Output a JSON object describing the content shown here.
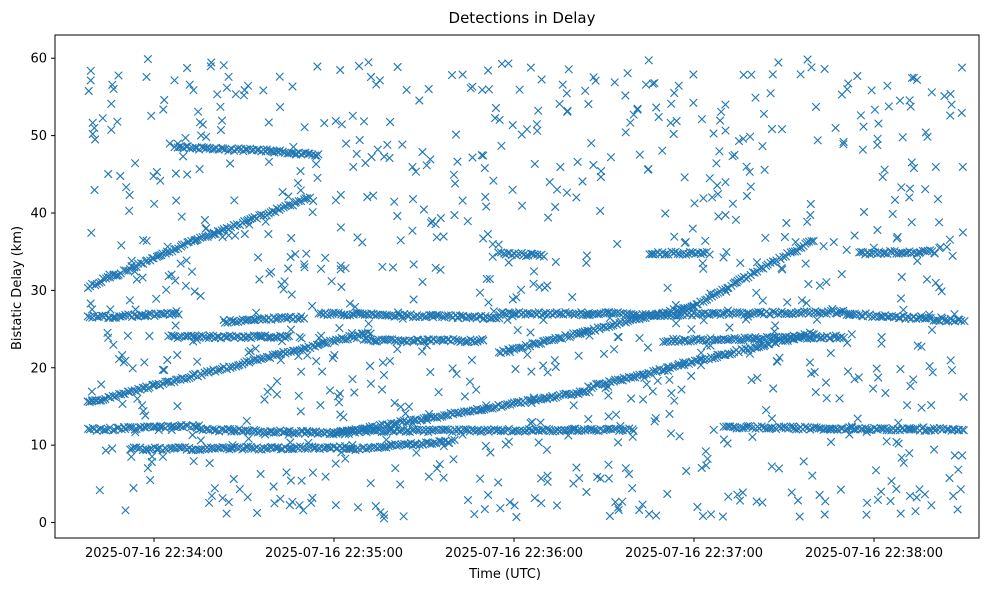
{
  "chart_data": {
    "type": "scatter",
    "title": "Detections in Delay",
    "xlabel": "Time (UTC)",
    "ylabel": "Bistatic Delay (km)",
    "marker": "x",
    "color": "#1f77b4",
    "x_type": "datetime",
    "xlim": [
      "2025-07-16 22:33:27",
      "2025-07-16 22:38:35"
    ],
    "ylim": [
      -2,
      63
    ],
    "xticks": [
      "2025-07-16 22:34:00",
      "2025-07-16 22:35:00",
      "2025-07-16 22:36:00",
      "2025-07-16 22:37:00",
      "2025-07-16 22:38:00"
    ],
    "yticks": [
      0,
      10,
      20,
      30,
      40,
      50,
      60
    ],
    "grid": false,
    "tracks": [
      {
        "start": "2025-07-16 22:33:38",
        "end": "2025-07-16 22:34:14",
        "y_start": 30.5,
        "y_end": 36.5
      },
      {
        "start": "2025-07-16 22:34:14",
        "end": "2025-07-16 22:34:52",
        "y_start": 36.5,
        "y_end": 42.0
      },
      {
        "start": "2025-07-16 22:34:07",
        "end": "2025-07-16 22:34:40",
        "y_start": 48.5,
        "y_end": 48.0
      },
      {
        "start": "2025-07-16 22:34:40",
        "end": "2025-07-16 22:34:55",
        "y_start": 48.0,
        "y_end": 47.5
      },
      {
        "start": "2025-07-16 22:33:38",
        "end": "2025-07-16 22:34:08",
        "y_start": 26.5,
        "y_end": 27.0
      },
      {
        "start": "2025-07-16 22:34:23",
        "end": "2025-07-16 22:34:50",
        "y_start": 26.0,
        "y_end": 26.5
      },
      {
        "start": "2025-07-16 22:34:55",
        "end": "2025-07-16 22:35:55",
        "y_start": 27.0,
        "y_end": 26.5
      },
      {
        "start": "2025-07-16 22:35:55",
        "end": "2025-07-16 22:36:40",
        "y_start": 27.0,
        "y_end": 27.0
      },
      {
        "start": "2025-07-16 22:36:40",
        "end": "2025-07-16 22:37:50",
        "y_start": 26.8,
        "y_end": 27.2
      },
      {
        "start": "2025-07-16 22:37:50",
        "end": "2025-07-16 22:38:30",
        "y_start": 27.0,
        "y_end": 26.0
      },
      {
        "start": "2025-07-16 22:33:38",
        "end": "2025-07-16 22:34:55",
        "y_start": 15.5,
        "y_end": 23.0
      },
      {
        "start": "2025-07-16 22:34:55",
        "end": "2025-07-16 22:35:12",
        "y_start": 23.0,
        "y_end": 24.5
      },
      {
        "start": "2025-07-16 22:35:00",
        "end": "2025-07-16 22:36:25",
        "y_start": 11.5,
        "y_end": 17.0
      },
      {
        "start": "2025-07-16 22:36:25",
        "end": "2025-07-16 22:37:40",
        "y_start": 17.5,
        "y_end": 24.5
      },
      {
        "start": "2025-07-16 22:35:55",
        "end": "2025-07-16 22:37:00",
        "y_start": 22.0,
        "y_end": 28.0
      },
      {
        "start": "2025-07-16 22:37:00",
        "end": "2025-07-16 22:37:40",
        "y_start": 28.0,
        "y_end": 36.5
      },
      {
        "start": "2025-07-16 22:33:38",
        "end": "2025-07-16 22:34:15",
        "y_start": 12.0,
        "y_end": 12.5
      },
      {
        "start": "2025-07-16 22:34:15",
        "end": "2025-07-16 22:35:05",
        "y_start": 12.0,
        "y_end": 11.5
      },
      {
        "start": "2025-07-16 22:35:05",
        "end": "2025-07-16 22:36:40",
        "y_start": 11.8,
        "y_end": 12.0
      },
      {
        "start": "2025-07-16 22:37:10",
        "end": "2025-07-16 22:38:30",
        "y_start": 12.3,
        "y_end": 12.0
      },
      {
        "start": "2025-07-16 22:33:52",
        "end": "2025-07-16 22:35:05",
        "y_start": 9.5,
        "y_end": 9.7
      },
      {
        "start": "2025-07-16 22:35:05",
        "end": "2025-07-16 22:35:40",
        "y_start": 9.5,
        "y_end": 10.5
      },
      {
        "start": "2025-07-16 22:34:05",
        "end": "2025-07-16 22:34:45",
        "y_start": 24.0,
        "y_end": 24.0
      },
      {
        "start": "2025-07-16 22:35:10",
        "end": "2025-07-16 22:35:50",
        "y_start": 23.5,
        "y_end": 23.5
      },
      {
        "start": "2025-07-16 22:36:50",
        "end": "2025-07-16 22:37:50",
        "y_start": 23.5,
        "y_end": 24.0
      },
      {
        "start": "2025-07-16 22:35:55",
        "end": "2025-07-16 22:36:10",
        "y_start": 34.8,
        "y_end": 34.5
      },
      {
        "start": "2025-07-16 22:37:55",
        "end": "2025-07-16 22:38:20",
        "y_start": 34.8,
        "y_end": 35.0
      },
      {
        "start": "2025-07-16 22:36:45",
        "end": "2025-07-16 22:37:05",
        "y_start": 34.8,
        "y_end": 34.8
      }
    ]
  }
}
